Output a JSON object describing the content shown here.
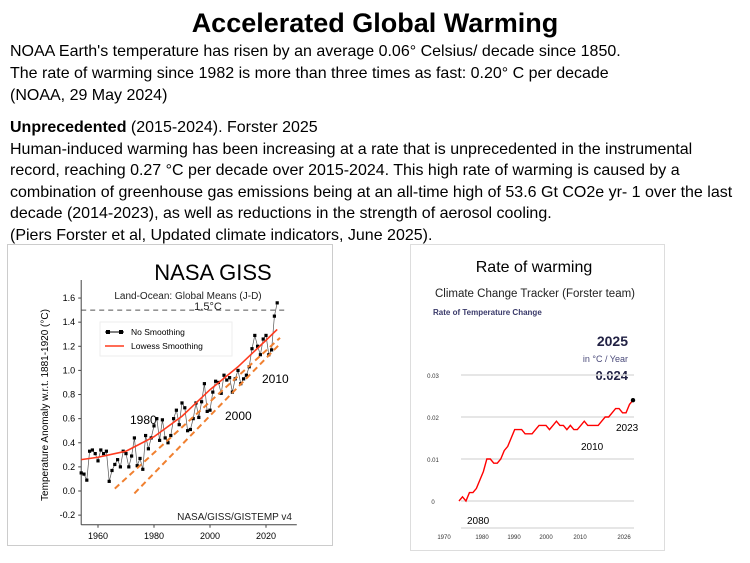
{
  "title": "Accelerated Global Warming",
  "noaa": {
    "line1": "NOAA Earth's temperature has risen by an average 0.06° Celsius/ decade since 1850.",
    "line2": "The rate of warming since 1982 is more than three times as fast: 0.20° C per decade",
    "line3": "(NOAA, 29 May 2024)"
  },
  "forster": {
    "heading_bold": "Unprecedented",
    "heading_rest": " (2015-2024). Forster 2025",
    "body": "Human-induced warming has been increasing at a rate that is unprecedented in the instrumental record, reaching 0.27 °C per decade over 2015-2024. This high rate of warming is caused by a combination of greenhouse gas emissions being at an all-time high of 53.6 Gt CO2e yr- 1 over the last decade (2014-2023), as well as reductions in the strength of aerosol cooling.",
    "citation": "(Piers Forster et al, Updated climate indicators, June 2025)."
  },
  "chart_data": [
    {
      "type": "line",
      "title": "NASA GISS",
      "subtitle": "Land-Ocean: Global Means (J-D)",
      "ylabel": "Temperature Anomaly w.r.t. 1881-1920 (°C)",
      "xlabel": "",
      "credit": "NASA/GISS/GISTEMP v4",
      "xlim": [
        1954,
        2031
      ],
      "ylim": [
        -0.28,
        1.75
      ],
      "xticks": [
        1960,
        1980,
        2000,
        2020
      ],
      "yticks": [
        -0.2,
        0.0,
        0.2,
        0.4,
        0.6,
        0.8,
        1.0,
        1.2,
        1.4,
        1.6
      ],
      "reference_line": {
        "value": 1.5,
        "label": "1.5°C"
      },
      "annotations": [
        "1980",
        "2000",
        "2010"
      ],
      "legend": [
        "No Smoothing",
        "Lowess Smoothing"
      ],
      "legend_position": "top-left",
      "series": [
        {
          "name": "No Smoothing",
          "color": "#000000",
          "x_start": 1954,
          "values": [
            0.15,
            0.14,
            0.09,
            0.33,
            0.34,
            0.31,
            0.25,
            0.34,
            0.31,
            0.33,
            0.08,
            0.17,
            0.22,
            0.26,
            0.2,
            0.33,
            0.31,
            0.2,
            0.29,
            0.44,
            0.21,
            0.27,
            0.18,
            0.46,
            0.35,
            0.44,
            0.54,
            0.6,
            0.42,
            0.59,
            0.44,
            0.4,
            0.46,
            0.6,
            0.67,
            0.55,
            0.73,
            0.69,
            0.5,
            0.51,
            0.6,
            0.73,
            0.61,
            0.74,
            0.89,
            0.66,
            0.67,
            0.82,
            0.91,
            0.9,
            0.81,
            0.96,
            0.92,
            0.94,
            0.82,
            0.93,
            1.0,
            0.89,
            0.93,
            0.96,
            1.03,
            1.18,
            1.29,
            1.2,
            1.13,
            1.26,
            1.29,
            1.13,
            1.17,
            1.45,
            1.56
          ]
        },
        {
          "name": "Lowess Smoothing",
          "color": "#ff3b1f",
          "x": [
            1954,
            1960,
            1970,
            1980,
            1990,
            2000,
            2010,
            2020,
            2024
          ],
          "values": [
            0.26,
            0.28,
            0.33,
            0.45,
            0.62,
            0.84,
            1.03,
            1.25,
            1.34
          ]
        },
        {
          "name": "trend-1",
          "color": "#f08030",
          "dashed": true,
          "x": [
            1966,
            2025
          ],
          "values": [
            0.02,
            1.27
          ]
        },
        {
          "name": "trend-2",
          "color": "#f08030",
          "dashed": true,
          "x": [
            1973,
            2025
          ],
          "values": [
            -0.02,
            1.22
          ]
        }
      ]
    },
    {
      "type": "line",
      "title": "Rate of warming",
      "subtitle": "Climate Change Tracker (Forster team)",
      "chart_title": "Rate of Temperature Change",
      "readout": {
        "year": "2025",
        "unit": "in °C / Year",
        "value": "0.024"
      },
      "ylim": [
        0,
        0.03
      ],
      "yticks": [
        "0",
        "0.01",
        "0.02",
        "0.03"
      ],
      "xticks": [
        "1970",
        "1980",
        "1990",
        "2000",
        "2010",
        "2026"
      ],
      "annotations": [
        "2080",
        "2010",
        "2023"
      ],
      "series": [
        {
          "name": "Rate of Temperature Change",
          "color": "#ff0000",
          "x_start": 1975,
          "values": [
            0,
            0.001,
            0,
            0.002,
            0.002,
            0.003,
            0.005,
            0.007,
            0.01,
            0.01,
            0.009,
            0.009,
            0.01,
            0.012,
            0.013,
            0.015,
            0.017,
            0.017,
            0.017,
            0.016,
            0.016,
            0.016,
            0.017,
            0.018,
            0.018,
            0.018,
            0.017,
            0.018,
            0.019,
            0.018,
            0.018,
            0.017,
            0.018,
            0.017,
            0.017,
            0.018,
            0.019,
            0.018,
            0.018,
            0.018,
            0.018,
            0.019,
            0.02,
            0.02,
            0.021,
            0.022,
            0.022,
            0.021,
            0.021,
            0.023,
            0.024
          ]
        }
      ]
    }
  ]
}
